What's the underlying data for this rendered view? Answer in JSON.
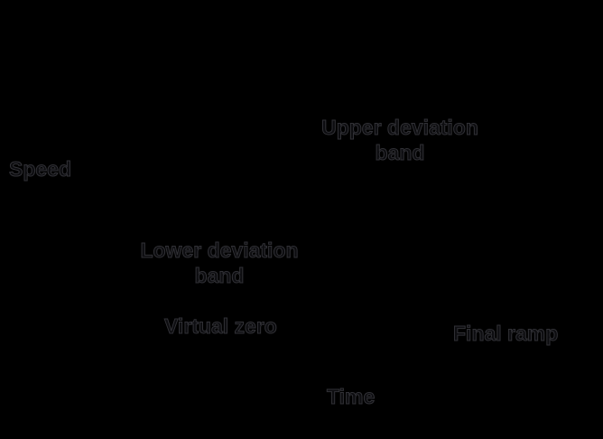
{
  "canvas": {
    "background_color": "#000000",
    "text_outline_color": "#313136",
    "text_fill_color": "#0d0d10"
  },
  "diagram": {
    "type": "ramp-monitoring-diagram",
    "axis_labels": {
      "y": "Speed",
      "x": "Time"
    },
    "annotations": {
      "upper_band_line1": "Upper deviation",
      "upper_band_line2": "band",
      "lower_band_line1": "Lower deviation",
      "lower_band_line2": "band",
      "virtual_zero": "Virtual zero",
      "final_ramp": "Final ramp"
    }
  }
}
